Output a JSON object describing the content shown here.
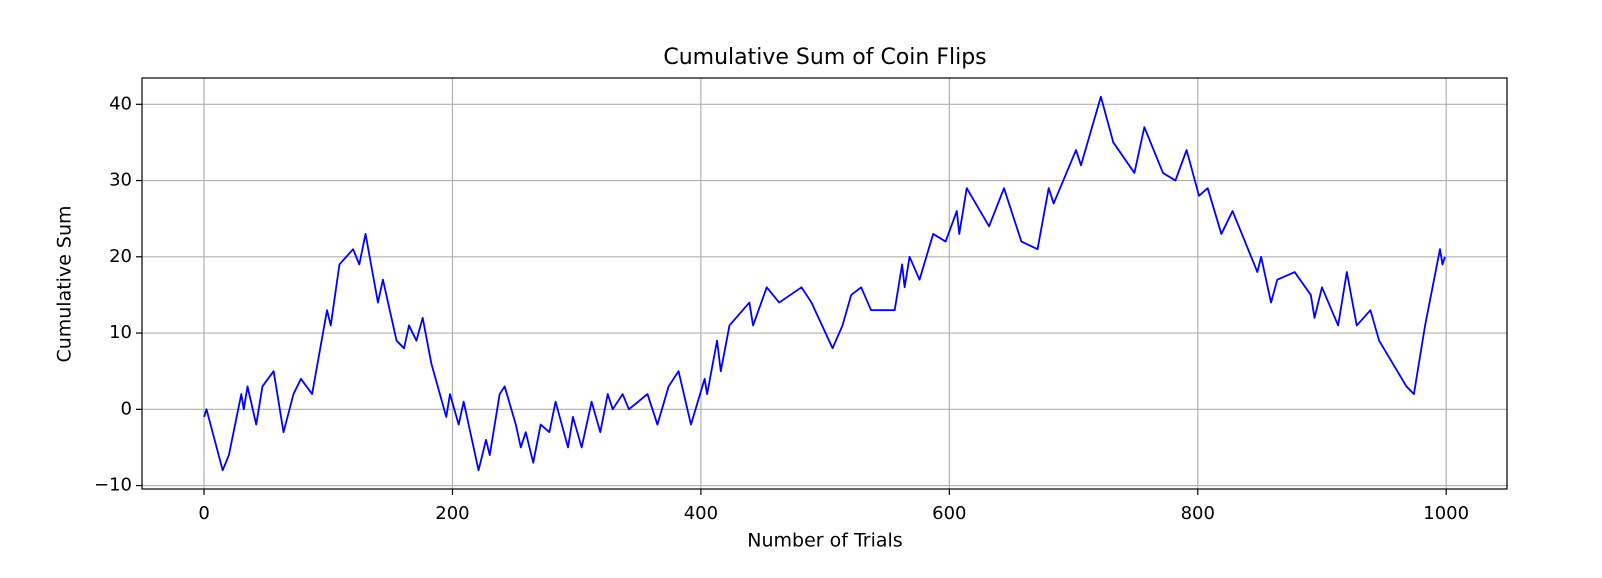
{
  "chart_data": {
    "type": "line",
    "title": "Cumulative Sum of Coin Flips",
    "x_label": "Number of Trials",
    "y_label": "Cumulative Sum",
    "grid": true,
    "xlim": [
      -49.95,
      1048.95
    ],
    "ylim": [
      -10.45,
      43.45
    ],
    "xticks": [
      0,
      200,
      400,
      600,
      800,
      1000
    ],
    "yticks": [
      {
        "value": -10,
        "label": "−10"
      },
      0,
      10,
      20,
      30,
      40
    ],
    "x": [
      0,
      2,
      15,
      20,
      30,
      32,
      35,
      42,
      47,
      56,
      64,
      72,
      78,
      87,
      99,
      102,
      109,
      120,
      125,
      130,
      140,
      144,
      155,
      161,
      165,
      171,
      176,
      183,
      195,
      198,
      205,
      209,
      221,
      227,
      230,
      238,
      242,
      251,
      255,
      259,
      265,
      271,
      278,
      283,
      293,
      297,
      304,
      312,
      319,
      325,
      329,
      337,
      342,
      357,
      365,
      374,
      382,
      392,
      403,
      405,
      413,
      416,
      423,
      439,
      442,
      453,
      463,
      481,
      489,
      506,
      514,
      521,
      529,
      537,
      556,
      562,
      564,
      568,
      576,
      587,
      597,
      606,
      608,
      614,
      632,
      644,
      658,
      671,
      680,
      684,
      702,
      706,
      722,
      732,
      749,
      757,
      772,
      782,
      791,
      801,
      808,
      819,
      828,
      848,
      851,
      859,
      864,
      878,
      891,
      894,
      900,
      913,
      920,
      928,
      939,
      946,
      968,
      974,
      983,
      995,
      997,
      999
    ],
    "series": [
      {
        "color": "#0000ff",
        "values": [
          -1,
          0,
          -8,
          -6,
          2,
          0,
          3,
          -2,
          3,
          5,
          -3,
          2,
          4,
          2,
          13,
          11,
          19,
          21,
          19,
          23,
          14,
          17,
          9,
          8,
          11,
          9,
          12,
          6,
          -1,
          2,
          -2,
          1,
          -8,
          -4,
          -6,
          2,
          3,
          -2,
          -5,
          -3,
          -7,
          -2,
          -3,
          1,
          -5,
          -1,
          -5,
          1,
          -3,
          2,
          0,
          2,
          0,
          2,
          -2,
          3,
          5,
          -2,
          4,
          2,
          9,
          5,
          11,
          14,
          11,
          16,
          14,
          16,
          14,
          8,
          11,
          15,
          16,
          13,
          13,
          19,
          16,
          20,
          17,
          23,
          22,
          26,
          23,
          29,
          24,
          29,
          22,
          21,
          29,
          27,
          34,
          32,
          41,
          35,
          31,
          37,
          31,
          30,
          34,
          28,
          29,
          23,
          26,
          18,
          20,
          14,
          17,
          18,
          15,
          12,
          16,
          11,
          18,
          11,
          13,
          9,
          3,
          2,
          11,
          21,
          19,
          20
        ]
      }
    ]
  }
}
